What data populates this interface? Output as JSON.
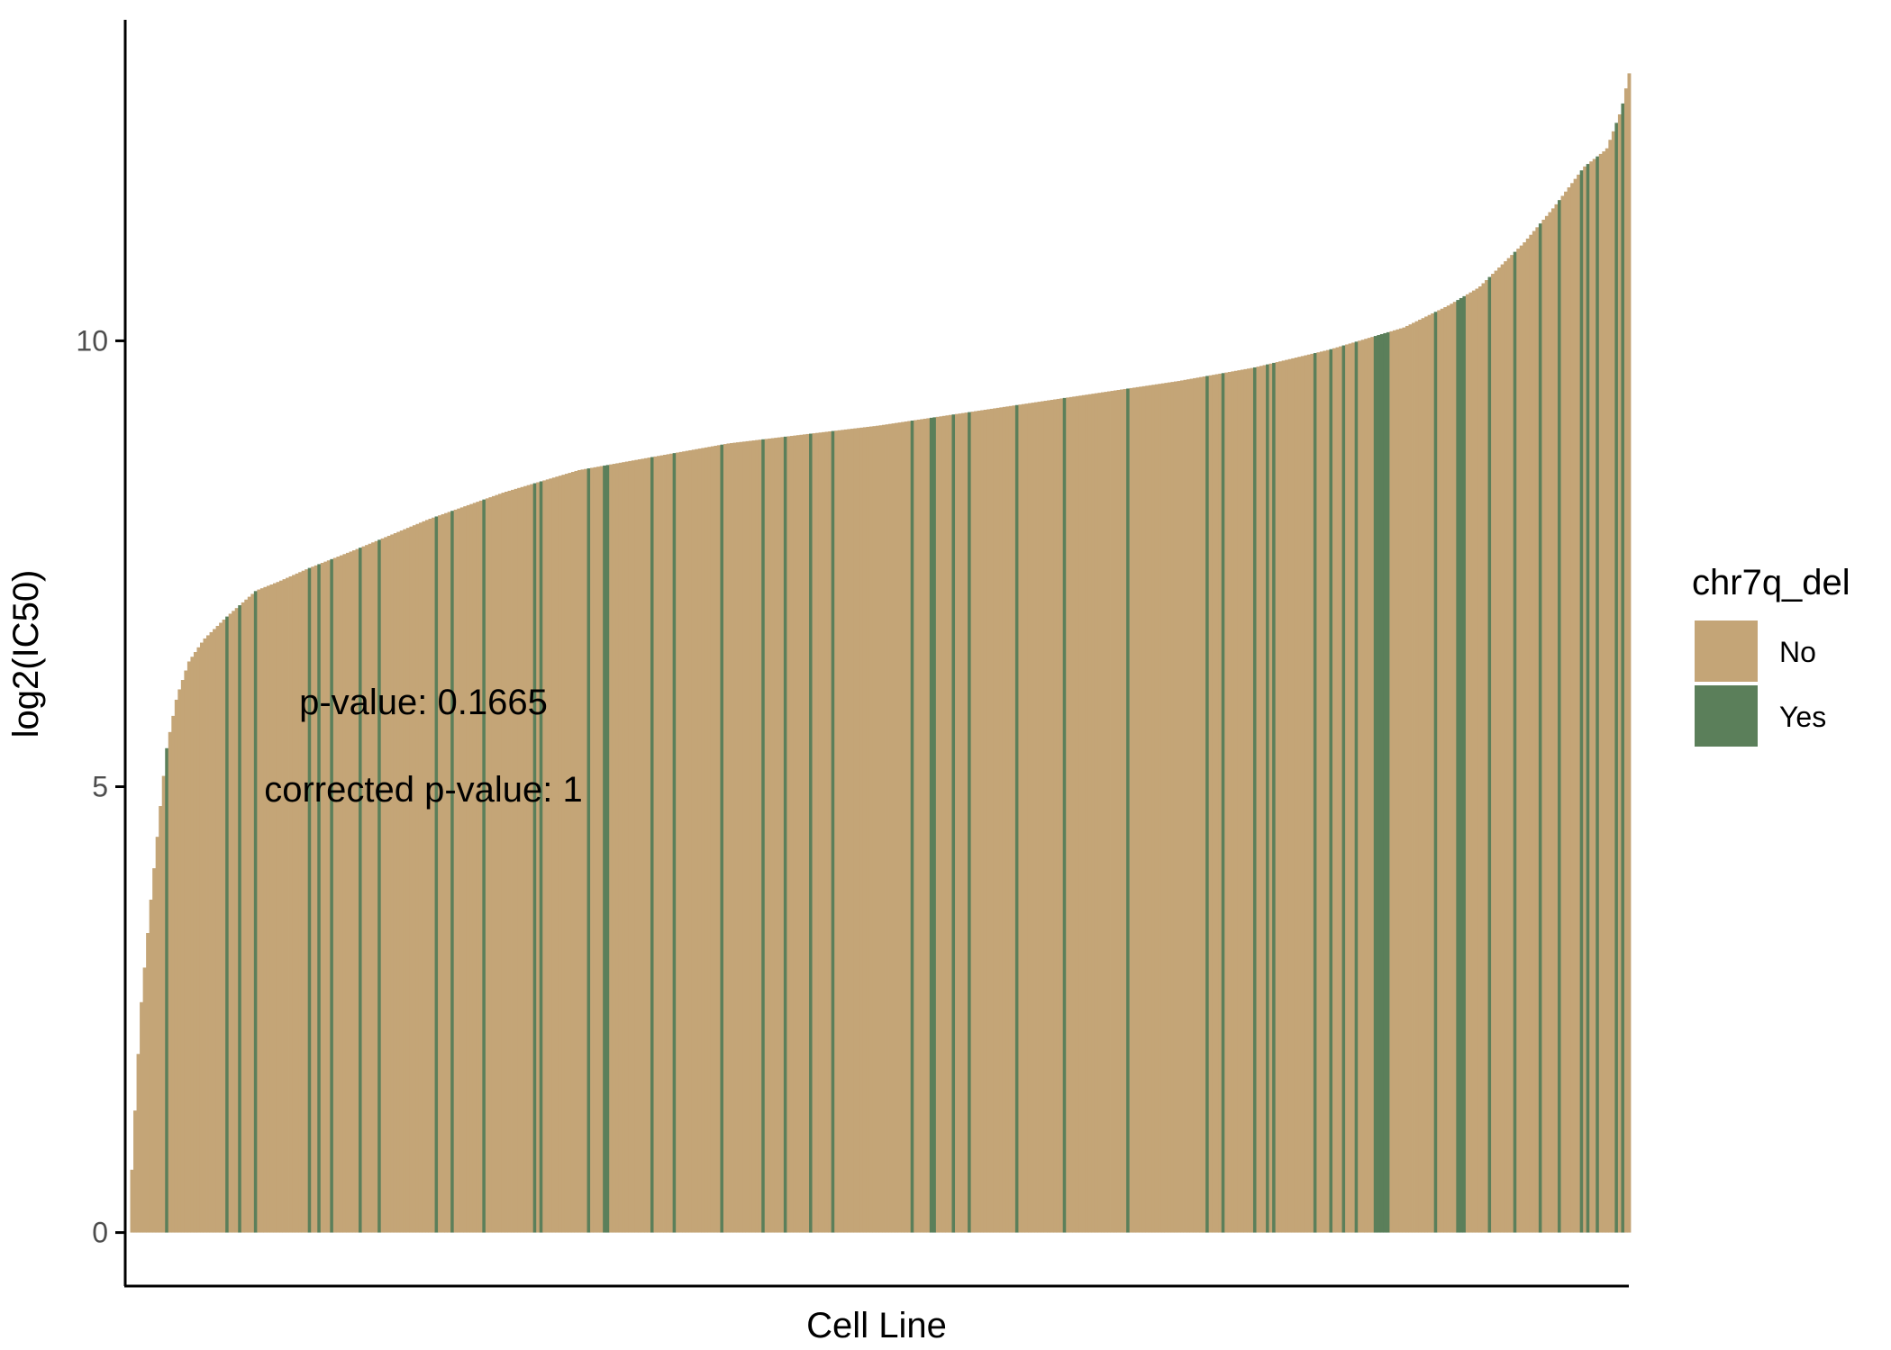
{
  "chart_data": {
    "type": "bar",
    "title": "",
    "xlabel": "Cell Line",
    "ylabel": "log2(IC50)",
    "ylim": [
      -0.6,
      13.6
    ],
    "yticks": [
      0,
      5,
      10
    ],
    "ytick_labels": [
      "0",
      "5",
      "10"
    ],
    "x_ticks_shown": false,
    "grid": false,
    "bar_count": 474,
    "order": "ascending by log2(IC50)",
    "value_curve": {
      "description": "sorted values, linear interpolation between rank fractions",
      "rank_fraction": [
        0,
        0.003,
        0.008,
        0.014,
        0.02,
        0.025,
        0.032,
        0.04,
        0.05,
        0.065,
        0.085,
        0.1,
        0.12,
        0.15,
        0.2,
        0.25,
        0.3,
        0.35,
        0.4,
        0.5,
        0.6,
        0.7,
        0.75,
        0.8,
        0.85,
        0.88,
        0.9,
        0.93,
        0.95,
        0.97,
        0.985,
        0.995,
        1.0
      ],
      "value": [
        0.0,
        1.0,
        2.5,
        3.6,
        4.6,
        5.4,
        6.0,
        6.4,
        6.65,
        6.9,
        7.2,
        7.3,
        7.45,
        7.65,
        8.0,
        8.3,
        8.55,
        8.7,
        8.85,
        9.05,
        9.3,
        9.55,
        9.7,
        9.9,
        10.15,
        10.4,
        10.6,
        11.1,
        11.5,
        11.95,
        12.15,
        12.6,
        13.0
      ]
    },
    "group_variable": "chr7q_del",
    "groups": [
      {
        "name": "No",
        "color": "#C4A577"
      },
      {
        "name": "Yes",
        "color": "#5B7F5A"
      }
    ],
    "yes_bar_ranks": [
      12,
      31,
      35,
      40,
      57,
      60,
      64,
      73,
      79,
      97,
      102,
      112,
      128,
      130,
      145,
      150,
      151,
      165,
      172,
      187,
      200,
      207,
      215,
      222,
      247,
      253,
      254,
      260,
      265,
      280,
      295,
      315,
      340,
      345,
      355,
      359,
      361,
      374,
      379,
      383,
      387,
      393,
      394,
      395,
      396,
      397,
      412,
      419,
      420,
      421,
      429,
      437,
      445,
      451,
      458,
      460,
      463,
      469,
      471
    ]
  },
  "annotations": {
    "p_value": "p-value: 0.1665",
    "corrected_p_value": "corrected p-value: 1"
  },
  "legend": {
    "title": "chr7q_del",
    "items": [
      {
        "label": "No",
        "color": "#C4A577"
      },
      {
        "label": "Yes",
        "color": "#5B7F5A"
      }
    ]
  }
}
